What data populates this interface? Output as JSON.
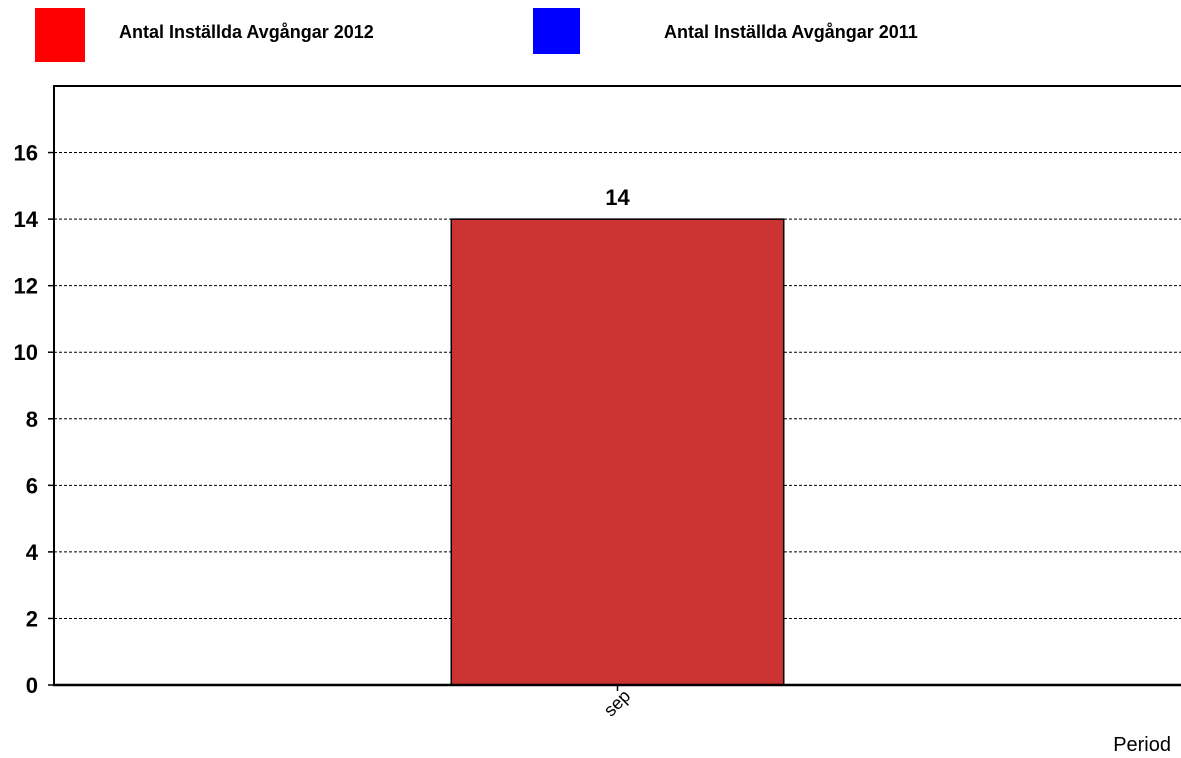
{
  "chart_data": {
    "type": "bar",
    "categories": [
      "sep"
    ],
    "series": [
      {
        "name": "Antal Inställda Avgångar 2012",
        "color": "#cc3333",
        "legend_color": "#ff0000",
        "values": [
          14
        ]
      },
      {
        "name": "Antal Inställda Avgångar 2011",
        "color": "#0000ff",
        "legend_color": "#0000ff",
        "values": [
          null
        ]
      }
    ],
    "data_labels": [
      "14"
    ],
    "title": "",
    "xlabel": "Period",
    "ylabel": "",
    "ylim": [
      0,
      18
    ],
    "yticks": [
      0,
      2,
      4,
      6,
      8,
      10,
      12,
      14,
      16
    ],
    "grid": "horizontal dashed",
    "legend_position": "top"
  }
}
